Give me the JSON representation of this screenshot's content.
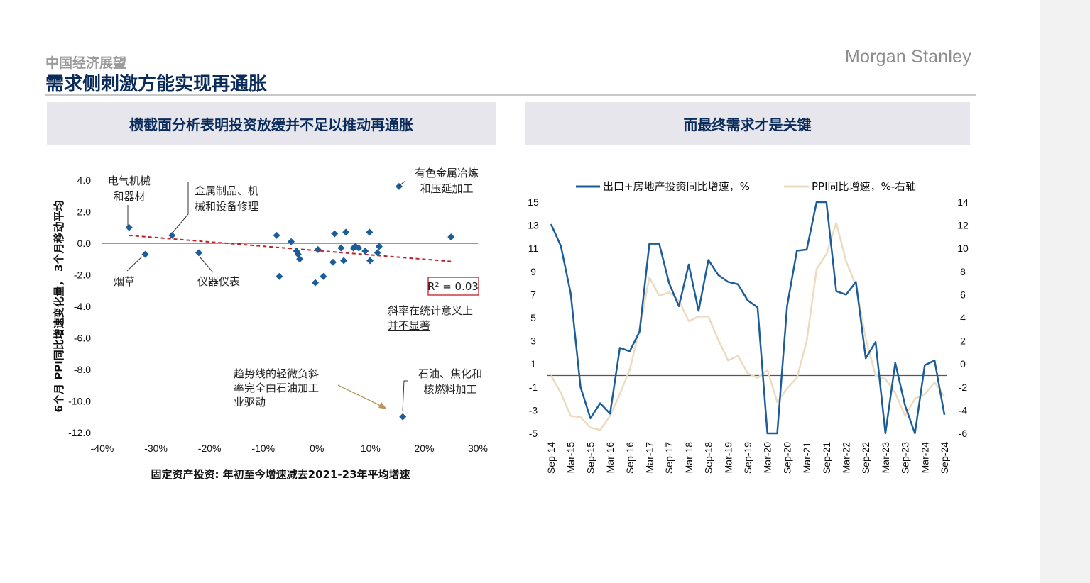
{
  "header": {
    "subtitle": "中国经济展望",
    "title": "需求侧刺激方能实现再通胀",
    "brand": "Morgan Stanley"
  },
  "panels": {
    "left_title": "横截面分析表明投资放缓并不足以推动再通胀",
    "right_title": "而最终需求才是关键"
  },
  "colors": {
    "navy": "#0b2c5b",
    "series_blue": "#1c5d99",
    "series_tan": "#ebdcc0",
    "trend_red": "#c0202a",
    "note_gold": "#b8985a"
  },
  "chart_data": [
    {
      "type": "scatter",
      "xlabel": "固定资产投资: 年初至今增速减去2021-23年平均增速",
      "ylabel": "6个月 PPI同比增速变化量， 3个月移动平均",
      "xlim": [
        -40,
        30
      ],
      "ylim": [
        -12,
        4
      ],
      "x_ticks": [
        -40,
        -30,
        -20,
        -10,
        0,
        10,
        20,
        30
      ],
      "x_tick_labels": [
        "-40%",
        "-30%",
        "-20%",
        "-10%",
        "0%",
        "10%",
        "20%",
        "30%"
      ],
      "y_ticks": [
        4,
        2,
        0,
        -2,
        -4,
        -6,
        -8,
        -10,
        -12
      ],
      "y_tick_labels": [
        "4.0",
        "2.0",
        "0.0",
        "-2.0",
        "-4.0",
        "-6.0",
        "-8.0",
        "-10.0",
        "-12.0"
      ],
      "points": [
        {
          "x": -35.0,
          "y": 1.0
        },
        {
          "x": -32.0,
          "y": -0.7
        },
        {
          "x": -27.0,
          "y": 0.5
        },
        {
          "x": -22.0,
          "y": -0.6
        },
        {
          "x": -7.5,
          "y": 0.5
        },
        {
          "x": -7.0,
          "y": -2.1
        },
        {
          "x": -4.8,
          "y": 0.1
        },
        {
          "x": -3.8,
          "y": -0.5
        },
        {
          "x": -3.5,
          "y": -0.7
        },
        {
          "x": -3.2,
          "y": -1.0
        },
        {
          "x": -0.3,
          "y": -2.5
        },
        {
          "x": 0.2,
          "y": -0.4
        },
        {
          "x": 1.2,
          "y": -2.1
        },
        {
          "x": 3.0,
          "y": -1.2
        },
        {
          "x": 3.3,
          "y": 0.6
        },
        {
          "x": 4.5,
          "y": -0.3
        },
        {
          "x": 5.0,
          "y": -1.1
        },
        {
          "x": 5.4,
          "y": 0.7
        },
        {
          "x": 6.8,
          "y": -0.3
        },
        {
          "x": 7.2,
          "y": -0.2
        },
        {
          "x": 7.8,
          "y": -0.3
        },
        {
          "x": 9.0,
          "y": -0.5
        },
        {
          "x": 9.8,
          "y": 0.7
        },
        {
          "x": 9.9,
          "y": -1.1
        },
        {
          "x": 11.3,
          "y": -0.6
        },
        {
          "x": 11.6,
          "y": -0.2
        },
        {
          "x": 15.3,
          "y": 3.6
        },
        {
          "x": 16.0,
          "y": -11.0
        },
        {
          "x": 25.0,
          "y": 0.4
        }
      ],
      "trendline": {
        "x": [
          -35,
          25
        ],
        "y": [
          0.5,
          -1.15
        ]
      },
      "r_squared_label": "R² = 0.03",
      "annotations": {
        "electrical": [
          "电气机械",
          "和器材"
        ],
        "metal_products": [
          "金属制品、机",
          "械和设备修理"
        ],
        "nonferrous": [
          "有色金属冶炼",
          "和压延加工"
        ],
        "tobacco": [
          "烟草"
        ],
        "instruments": [
          "仪器仪表"
        ],
        "petroleum": [
          "石油、焦化和",
          "核燃料加工"
        ],
        "slope_note": [
          "斜率在统计意义上",
          "并不显著"
        ],
        "trend_note": [
          "趋势线的轻微负斜",
          "率完全由石油加工",
          "业驱动"
        ]
      }
    },
    {
      "type": "line",
      "x_tick_labels": [
        "Sep-14",
        "Mar-15",
        "Sep-15",
        "Mar-16",
        "Sep-16",
        "Mar-17",
        "Sep-17",
        "Mar-18",
        "Sep-18",
        "Mar-19",
        "Sep-19",
        "Mar-20",
        "Sep-20",
        "Mar-21",
        "Sep-21",
        "Mar-22",
        "Sep-22",
        "Mar-23",
        "Sep-23",
        "Mar-24",
        "Sep-24"
      ],
      "left_axis": {
        "ticks": [
          15,
          13,
          11,
          9,
          7,
          5,
          3,
          1,
          -1,
          -3,
          -5
        ],
        "lim": [
          -5,
          15
        ]
      },
      "right_axis": {
        "ticks": [
          14,
          12,
          10,
          8,
          6,
          4,
          2,
          0,
          -2,
          -4,
          -6
        ],
        "lim": [
          -6,
          14
        ]
      },
      "series": [
        {
          "name": "出口+房地产投资同比增速，%",
          "axis": "left",
          "x": [
            0,
            1,
            2,
            3,
            4,
            5,
            6,
            7,
            8,
            9,
            10,
            11,
            12,
            13,
            14,
            15,
            16,
            17,
            18,
            19,
            20,
            21,
            22,
            23,
            24,
            25,
            26,
            27,
            28,
            29,
            30,
            31,
            32,
            33,
            34,
            35,
            36,
            37,
            38,
            39,
            40
          ],
          "values": [
            13.1,
            11.2,
            7.1,
            -1.0,
            -3.7,
            -2.4,
            -3.3,
            2.4,
            2.1,
            3.8,
            11.4,
            11.4,
            8.0,
            6.0,
            9.6,
            5.6,
            10.0,
            8.7,
            8.1,
            7.9,
            6.5,
            5.9,
            -5.5,
            -5.5,
            6.0,
            10.8,
            10.9,
            15.0,
            15.0,
            7.3,
            7.0,
            8.1,
            1.5,
            2.9,
            -5.5,
            1.1,
            -2.6,
            -5.5,
            0.9,
            1.3,
            -3.4
          ]
        },
        {
          "name": "PPI同比增速，%-右轴",
          "axis": "right",
          "x": [
            0,
            1,
            2,
            3,
            4,
            5,
            6,
            7,
            8,
            9,
            10,
            11,
            12,
            13,
            14,
            15,
            16,
            17,
            18,
            19,
            20,
            21,
            22,
            23,
            24,
            25,
            26,
            27,
            28,
            29,
            30,
            31,
            32,
            33,
            34,
            35,
            36,
            37,
            38,
            39,
            40
          ],
          "values": [
            -1.0,
            -2.5,
            -4.5,
            -4.6,
            -5.5,
            -5.7,
            -4.5,
            -2.6,
            -0.5,
            3.0,
            7.5,
            5.9,
            6.2,
            5.5,
            3.7,
            4.1,
            4.1,
            2.1,
            0.3,
            0.7,
            -0.8,
            -1.2,
            -0.5,
            -3.3,
            -2.1,
            -1.2,
            2.0,
            8.2,
            9.5,
            12.2,
            8.9,
            6.8,
            2.2,
            -1.0,
            -1.3,
            -2.5,
            -4.5,
            -3.0,
            -2.6,
            -1.6,
            -2.8
          ]
        }
      ]
    }
  ]
}
